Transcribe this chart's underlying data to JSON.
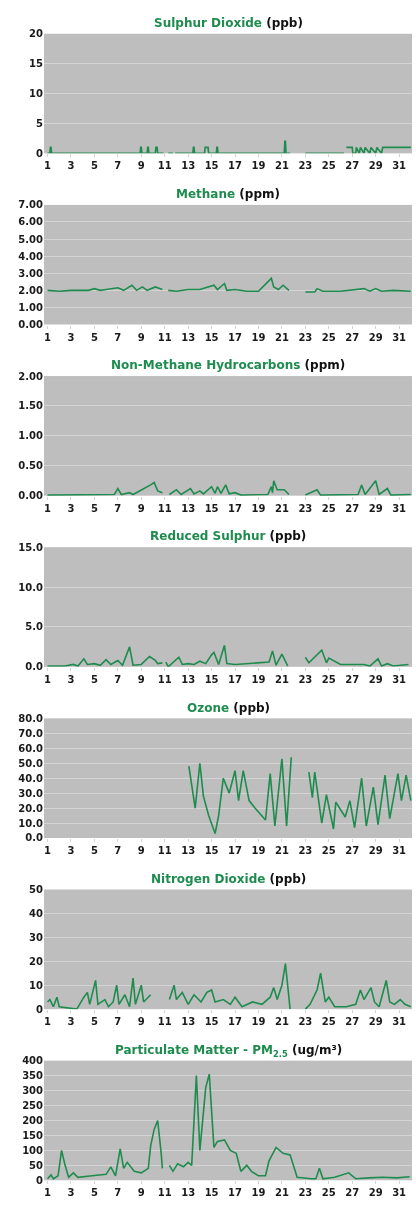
{
  "chart_data": [
    {
      "type": "line",
      "title": "Sulphur Dioxide (ppb)",
      "color": "#1e8c4e",
      "grid": "y",
      "xlim": [
        0.7,
        32.1
      ],
      "xticks": [
        1,
        3,
        5,
        7,
        9,
        11,
        13,
        15,
        17,
        19,
        21,
        23,
        25,
        27,
        29,
        31
      ],
      "ylim": [
        0,
        20
      ],
      "yticks": [
        0,
        5,
        10,
        15,
        20
      ],
      "x": [
        1,
        1.2,
        1.25,
        1.3,
        1.35,
        8.9,
        8.95,
        9.0,
        9.05,
        9.5,
        9.55,
        9.6,
        9.65,
        10.2,
        10.25,
        10.35,
        10.4,
        10.9,
        11.0,
        11.3,
        11.7,
        11.75,
        11.9,
        13.4,
        13.45,
        13.5,
        13.55,
        14.4,
        14.45,
        14.7,
        14.75,
        15.4,
        15.45,
        15.5,
        15.55,
        21.2,
        21.25,
        21.3,
        21.35,
        21.7,
        22.3,
        23,
        26.3,
        26.4,
        26.5,
        27.0,
        27.05,
        27.3,
        27.35,
        27.6,
        27.7,
        28.0,
        28.1,
        28.5,
        28.6,
        29.0,
        29.1,
        29.5,
        29.6,
        32
      ],
      "values": [
        0,
        0,
        1,
        1,
        0,
        0,
        1,
        1,
        0,
        0,
        1,
        1,
        0,
        0,
        1,
        1,
        0,
        0,
        null,
        0,
        0,
        null,
        0,
        0,
        1,
        1,
        0,
        0,
        1,
        1,
        0,
        0,
        1,
        1,
        0,
        0,
        2,
        2,
        0,
        0,
        null,
        0,
        0,
        null,
        1,
        1,
        0,
        0,
        1,
        0,
        1,
        0,
        1,
        0,
        1,
        0,
        1,
        0,
        1,
        1
      ]
    },
    {
      "type": "line",
      "title": "Methane (ppm)",
      "color": "#1e8c4e",
      "grid": "y",
      "xlim": [
        0.7,
        32.1
      ],
      "xticks": [
        1,
        3,
        5,
        7,
        9,
        11,
        13,
        15,
        17,
        19,
        21,
        23,
        25,
        27,
        29,
        31
      ],
      "ylim": [
        0,
        7
      ],
      "yticks": [
        {
          "value": 0,
          "label": "0.00"
        },
        {
          "value": 1,
          "label": "1.00"
        },
        {
          "value": 2,
          "label": "2.00"
        },
        {
          "value": 3,
          "label": "3.00"
        },
        {
          "value": 4,
          "label": "4.00"
        },
        {
          "value": 5,
          "label": "5.00"
        },
        {
          "value": 6,
          "label": "6.00"
        },
        {
          "value": 7,
          "label": "7.00"
        }
      ],
      "x": [
        1,
        2,
        3,
        4.5,
        5,
        5.5,
        6,
        7,
        7.5,
        8.2,
        8.6,
        9.1,
        9.5,
        10.2,
        10.8,
        11.0,
        11.3,
        12,
        13,
        14,
        15.2,
        15.5,
        16.1,
        16.3,
        17,
        18,
        19,
        20.1,
        20.3,
        20.7,
        21.1,
        21.6,
        22.3,
        23,
        23.8,
        24.0,
        24.5,
        26,
        28,
        28.5,
        29,
        29.5,
        30.5,
        32
      ],
      "values": [
        2.0,
        1.95,
        2.0,
        2.0,
        2.1,
        2.0,
        2.05,
        2.15,
        2.0,
        2.3,
        2.0,
        2.2,
        2.0,
        2.2,
        2.05,
        null,
        2.0,
        1.95,
        2.05,
        2.05,
        2.3,
        2.05,
        2.4,
        2.0,
        2.05,
        1.95,
        1.95,
        2.7,
        2.2,
        2.05,
        2.3,
        2.0,
        null,
        1.9,
        1.9,
        2.1,
        1.95,
        1.95,
        2.1,
        1.95,
        2.1,
        1.95,
        2.0,
        1.95
      ]
    },
    {
      "type": "line",
      "title": "Non-Methane Hydrocarbons (ppm)",
      "color": "#1e8c4e",
      "grid": "y",
      "xlim": [
        0.7,
        32.1
      ],
      "xticks": [
        1,
        3,
        5,
        7,
        9,
        11,
        13,
        15,
        17,
        19,
        21,
        23,
        25,
        27,
        29,
        31
      ],
      "ylim": [
        0,
        2
      ],
      "yticks": [
        {
          "value": 0,
          "label": "0.00"
        },
        {
          "value": 0.5,
          "label": "0.50"
        },
        {
          "value": 1,
          "label": "1.00"
        },
        {
          "value": 1.5,
          "label": "1.50"
        },
        {
          "value": 2,
          "label": "2.00"
        }
      ],
      "x": [
        1,
        6.7,
        7.0,
        7.3,
        8.0,
        8.3,
        9.8,
        10.1,
        10.4,
        10.8,
        11.0,
        11.4,
        12.0,
        12.4,
        13.2,
        13.5,
        14.0,
        14.3,
        15.0,
        15.3,
        15.5,
        15.8,
        16.2,
        16.5,
        17,
        17.5,
        19.8,
        20.1,
        20.2,
        20.3,
        20.6,
        21.2,
        21.6,
        22.3,
        23,
        24,
        24.3,
        27.5,
        27.8,
        28.1,
        29.0,
        29.3,
        30,
        30.3,
        32
      ],
      "values": [
        0.01,
        0.02,
        0.12,
        0.02,
        0.05,
        0.02,
        0.18,
        0.22,
        0.08,
        0.05,
        null,
        0.02,
        0.1,
        0.02,
        0.12,
        0.03,
        0.08,
        0.03,
        0.15,
        0.04,
        0.15,
        0.04,
        0.18,
        0.03,
        0.05,
        0.01,
        0.02,
        0.15,
        0.05,
        0.25,
        0.1,
        0.1,
        0.02,
        null,
        0.01,
        0.1,
        0.01,
        0.02,
        0.18,
        0.02,
        0.25,
        0.02,
        0.12,
        0.01,
        0.02
      ]
    },
    {
      "type": "line",
      "title": "Reduced Sulphur (ppb)",
      "color": "#1e8c4e",
      "grid": "y",
      "xlim": [
        0.7,
        32.1
      ],
      "xticks": [
        1,
        3,
        5,
        7,
        9,
        11,
        13,
        15,
        17,
        19,
        21,
        23,
        25,
        27,
        29,
        31
      ],
      "ylim": [
        0,
        15
      ],
      "yticks": [
        {
          "value": 0,
          "label": "0.0"
        },
        {
          "value": 5,
          "label": "5.0"
        },
        {
          "value": 10,
          "label": "10.0"
        },
        {
          "value": 15,
          "label": "15.0"
        }
      ],
      "x": [
        1,
        2.5,
        3.2,
        3.6,
        4.1,
        4.4,
        5,
        5.5,
        6,
        6.4,
        7,
        7.4,
        8.0,
        8.3,
        9.0,
        9.7,
        10.2,
        10.4,
        10.8,
        11.0,
        11.1,
        11.3,
        12.2,
        12.5,
        13,
        13.5,
        14,
        14.5,
        15.0,
        15.2,
        15.6,
        16.1,
        16.3,
        17,
        19.9,
        20.2,
        20.5,
        21.0,
        21.5,
        22.3,
        23.0,
        23.3,
        24.4,
        24.8,
        25.0,
        26,
        28,
        28.5,
        29.2,
        29.5,
        30,
        30.5,
        31.8
      ],
      "values": [
        0.1,
        0.1,
        0.3,
        0.1,
        1.0,
        0.3,
        0.4,
        0.2,
        0.9,
        0.3,
        0.8,
        0.2,
        2.5,
        0.2,
        0.3,
        1.3,
        0.8,
        0.4,
        0.5,
        null,
        0.6,
        0.0,
        1.2,
        0.3,
        0.4,
        0.3,
        0.7,
        0.4,
        1.5,
        1.8,
        0.3,
        2.7,
        0.4,
        0.3,
        0.6,
        2.0,
        0.2,
        1.6,
        0.1,
        null,
        1.2,
        0.5,
        2.1,
        0.5,
        1.1,
        0.3,
        0.3,
        0.1,
        1.0,
        0.1,
        0.4,
        0.1,
        0.3
      ]
    },
    {
      "type": "line",
      "title": "Ozone (ppb)",
      "color": "#1e8c4e",
      "grid": "y",
      "xlim": [
        0.7,
        32.1
      ],
      "xticks": [
        1,
        3,
        5,
        7,
        9,
        11,
        13,
        15,
        17,
        19,
        21,
        23,
        25,
        27,
        29,
        31
      ],
      "ylim": [
        0,
        80
      ],
      "yticks": [
        {
          "value": 0,
          "label": "0.0"
        },
        {
          "value": 10,
          "label": "10.0"
        },
        {
          "value": 20,
          "label": "20.0"
        },
        {
          "value": 30,
          "label": "30.0"
        },
        {
          "value": 40,
          "label": "40.0"
        },
        {
          "value": 50,
          "label": "50.0"
        },
        {
          "value": 60,
          "label": "60.0"
        },
        {
          "value": 70,
          "label": "70.0"
        },
        {
          "value": 80,
          "label": "80.0"
        }
      ],
      "x": [
        13.06,
        13.6,
        14.0,
        14.3,
        14.75,
        15.3,
        15.6,
        16.0,
        16.5,
        17.0,
        17.3,
        17.7,
        18.2,
        18.7,
        19.6,
        20.0,
        20.4,
        21.0,
        21.4,
        21.8,
        22.5,
        23.3,
        23.6,
        23.8,
        24.4,
        24.8,
        25.4,
        25.6,
        26.4,
        26.8,
        27.2,
        27.8,
        28.2,
        28.8,
        29.2,
        29.8,
        30.2,
        30.9,
        31.2,
        31.6,
        32.0
      ],
      "values": [
        48,
        20,
        50,
        28,
        15,
        3,
        15,
        40,
        30,
        45,
        25,
        45,
        25,
        20,
        12,
        43,
        8,
        53,
        8,
        54,
        null,
        44,
        27,
        44,
        10,
        29,
        6,
        24,
        14,
        25,
        7,
        40,
        8,
        34,
        9,
        42,
        13,
        43,
        25,
        42,
        25
      ]
    },
    {
      "type": "line",
      "title": "Nitrogen Dioxide (ppb)",
      "color": "#1e8c4e",
      "grid": "y",
      "xlim": [
        0.7,
        32.1
      ],
      "xticks": [
        1,
        3,
        5,
        7,
        9,
        11,
        13,
        15,
        17,
        19,
        21,
        23,
        25,
        27,
        29,
        31
      ],
      "ylim": [
        0,
        50
      ],
      "yticks": [
        0,
        10,
        20,
        30,
        40,
        50
      ],
      "x": [
        1.0,
        1.2,
        1.5,
        1.8,
        2.0,
        3.5,
        4.1,
        4.4,
        4.6,
        5.1,
        5.3,
        5.9,
        6.2,
        6.6,
        6.9,
        7.1,
        7.6,
        8.0,
        8.3,
        8.5,
        9.0,
        9.2,
        9.8,
        10.5,
        11.4,
        11.8,
        12.0,
        12.5,
        13,
        13.5,
        14.1,
        14.6,
        15.0,
        15.3,
        16.0,
        16.6,
        17.0,
        17.6,
        18.5,
        19.3,
        20.0,
        20.3,
        20.6,
        21.0,
        21.3,
        21.7,
        22.3,
        23.0,
        23.4,
        24.0,
        24.3,
        24.7,
        25.0,
        25.5,
        26.5,
        27.3,
        27.7,
        28.0,
        28.6,
        28.9,
        29.3,
        29.9,
        30.2,
        30.6,
        31.1,
        31.5,
        32.0
      ],
      "values": [
        3,
        4,
        1,
        5,
        1,
        0,
        5,
        7,
        2,
        12,
        2,
        4,
        1,
        3,
        10,
        2,
        6,
        1,
        13,
        2,
        10,
        3,
        6,
        null,
        4,
        10,
        4,
        7,
        2,
        6,
        3,
        7,
        8,
        3,
        4,
        2,
        5,
        1,
        3,
        2,
        5,
        9,
        4,
        10,
        19,
        0,
        null,
        0,
        2,
        8,
        15,
        3,
        5,
        1,
        1,
        2,
        8,
        4,
        9,
        3,
        1,
        12,
        3,
        2,
        4,
        2,
        1
      ]
    },
    {
      "type": "line",
      "title": "Particulate Matter - PM$_{2.5}$ (ug/m³)",
      "color": "#1e8c4e",
      "grid": "y",
      "xlim": [
        0.7,
        32.1
      ],
      "xticks": [
        1,
        3,
        5,
        7,
        9,
        11,
        13,
        15,
        17,
        19,
        21,
        23,
        25,
        27,
        29,
        31
      ],
      "ylim": [
        0,
        400
      ],
      "yticks": [
        0,
        50,
        100,
        150,
        200,
        250,
        300,
        350,
        400
      ],
      "x": [
        1.0,
        1.3,
        1.5,
        1.9,
        2.2,
        2.5,
        2.8,
        3.2,
        3.6,
        4.8,
        6.0,
        6.4,
        6.8,
        7.2,
        7.5,
        7.8,
        8.4,
        9.0,
        9.6,
        9.8,
        10.1,
        10.4,
        10.7,
        10.8,
        11.1,
        11.4,
        11.7,
        12.1,
        12.6,
        13.0,
        13.3,
        13.7,
        14.0,
        14.5,
        14.8,
        15.2,
        15.5,
        16.1,
        16.6,
        17.1,
        17.5,
        18.0,
        18.4,
        19.0,
        19.6,
        19.9,
        20.5,
        21.1,
        21.7,
        22.3,
        23.5,
        23.9,
        24.2,
        24.5,
        25.5,
        26.7,
        27.3,
        28.4,
        29.6,
        30.8,
        31.9
      ],
      "values": [
        5,
        18,
        5,
        15,
        100,
        50,
        10,
        25,
        10,
        15,
        20,
        45,
        15,
        105,
        40,
        60,
        30,
        25,
        40,
        115,
        170,
        200,
        90,
        40,
        null,
        50,
        30,
        55,
        45,
        60,
        50,
        350,
        100,
        310,
        355,
        110,
        130,
        135,
        100,
        90,
        30,
        50,
        30,
        15,
        15,
        65,
        110,
        90,
        85,
        10,
        5,
        5,
        40,
        5,
        10,
        25,
        5,
        8,
        10,
        8,
        12
      ]
    }
  ]
}
